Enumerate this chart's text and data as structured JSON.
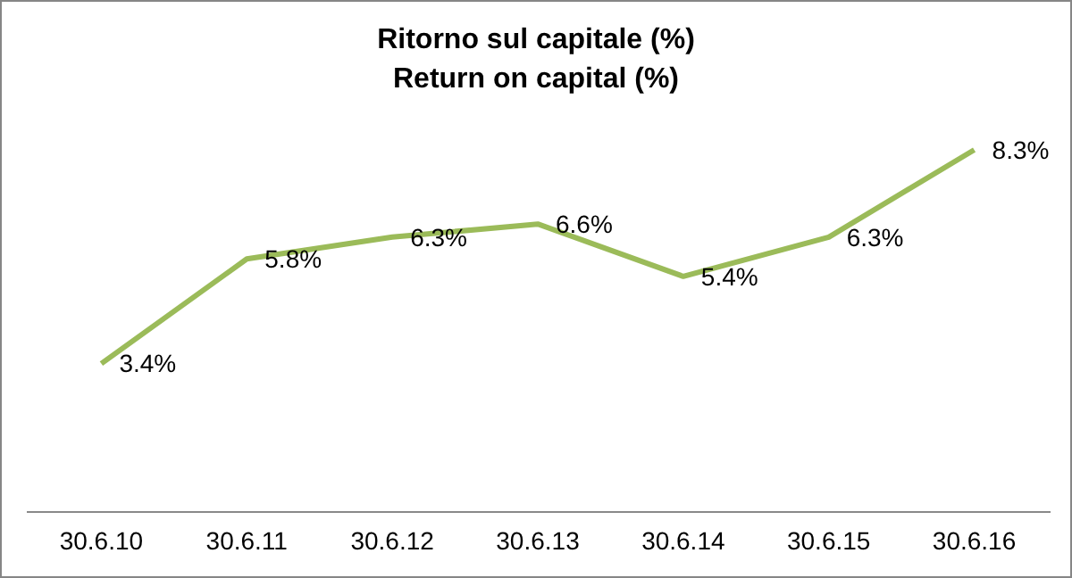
{
  "chart_data": {
    "type": "line",
    "title": "Ritorno sul capitale (%)\nReturn on capital (%)",
    "categories": [
      "30.6.10",
      "30.6.11",
      "30.6.12",
      "30.6.13",
      "30.6.14",
      "30.6.15",
      "30.6.16"
    ],
    "series": [
      {
        "color": "#9bbb59",
        "values": [
          3.4,
          5.8,
          6.3,
          6.6,
          5.4,
          6.3,
          8.3
        ],
        "value_labels": [
          "3.4%",
          "5.8%",
          "6.3%",
          "6.6%",
          "5.4%",
          "6.3%",
          "8.3%"
        ]
      }
    ],
    "marker": "none",
    "line_style": "solid",
    "tick_labels": "x"
  }
}
